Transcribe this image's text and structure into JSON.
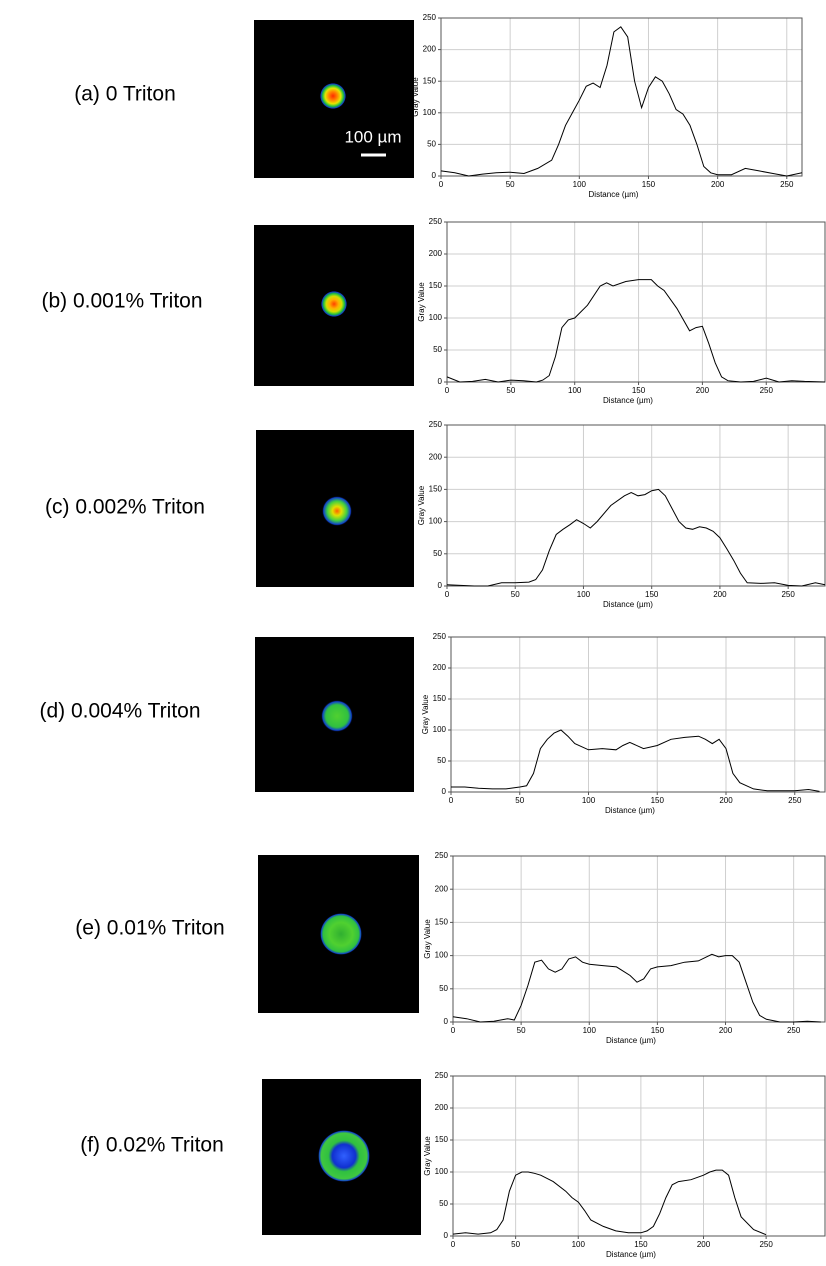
{
  "chart_data": [
    {
      "type": "line",
      "title": "(a) 0 Triton",
      "xlabel": "Distance (µm)",
      "ylabel": "Gray Value",
      "color": "#000000",
      "grid": true,
      "xlim": [
        0,
        261
      ],
      "ylim": [
        0,
        250
      ],
      "xticks": [
        0,
        50,
        100,
        150,
        200,
        250
      ],
      "yticks": [
        0,
        50,
        100,
        150,
        200,
        250
      ],
      "x": [
        0,
        10,
        20,
        30,
        40,
        50,
        60,
        70,
        80,
        85,
        90,
        95,
        100,
        105,
        110,
        115,
        120,
        125,
        130,
        135,
        140,
        145,
        150,
        155,
        160,
        165,
        170,
        175,
        180,
        185,
        190,
        195,
        200,
        210,
        220,
        230,
        240,
        250,
        261
      ],
      "values": [
        8,
        5,
        0,
        3,
        5,
        6,
        4,
        12,
        25,
        50,
        80,
        100,
        120,
        142,
        147,
        140,
        175,
        228,
        236,
        220,
        150,
        108,
        140,
        157,
        150,
        130,
        105,
        98,
        80,
        50,
        15,
        5,
        2,
        2,
        12,
        8,
        4,
        0,
        5
      ]
    },
    {
      "type": "line",
      "title": "(b) 0.001% Triton",
      "xlabel": "Distance (µm)",
      "ylabel": "Gray Value",
      "color": "#000000",
      "grid": true,
      "xlim": [
        0,
        296
      ],
      "ylim": [
        0,
        250
      ],
      "xticks": [
        0,
        50,
        100,
        150,
        200,
        250
      ],
      "yticks": [
        0,
        50,
        100,
        150,
        200,
        250
      ],
      "x": [
        0,
        10,
        20,
        30,
        40,
        50,
        60,
        70,
        75,
        80,
        85,
        90,
        95,
        100,
        110,
        120,
        125,
        130,
        140,
        150,
        160,
        165,
        170,
        180,
        190,
        195,
        200,
        205,
        210,
        215,
        220,
        230,
        240,
        250,
        260,
        270,
        280,
        296
      ],
      "values": [
        8,
        0,
        1,
        4,
        0,
        3,
        2,
        0,
        3,
        10,
        40,
        85,
        97,
        100,
        120,
        150,
        155,
        150,
        157,
        160,
        160,
        150,
        143,
        115,
        80,
        85,
        87,
        60,
        30,
        8,
        2,
        0,
        1,
        6,
        0,
        2,
        1,
        0
      ]
    },
    {
      "type": "line",
      "title": "(c) 0.002% Triton",
      "xlabel": "Distance (µm)",
      "ylabel": "Gray Value",
      "color": "#000000",
      "grid": true,
      "xlim": [
        0,
        277
      ],
      "ylim": [
        0,
        250
      ],
      "xticks": [
        0,
        50,
        100,
        150,
        200,
        250
      ],
      "yticks": [
        0,
        50,
        100,
        150,
        200,
        250
      ],
      "x": [
        0,
        10,
        20,
        30,
        40,
        50,
        60,
        65,
        70,
        75,
        80,
        85,
        90,
        95,
        100,
        105,
        110,
        120,
        130,
        135,
        140,
        145,
        150,
        155,
        160,
        170,
        175,
        180,
        185,
        190,
        195,
        200,
        205,
        210,
        215,
        220,
        230,
        240,
        250,
        260,
        270,
        277
      ],
      "values": [
        2,
        1,
        0,
        0,
        5,
        5,
        6,
        10,
        25,
        55,
        80,
        88,
        95,
        103,
        97,
        90,
        100,
        125,
        140,
        145,
        140,
        142,
        148,
        150,
        140,
        100,
        90,
        88,
        92,
        90,
        85,
        75,
        58,
        40,
        20,
        5,
        4,
        5,
        1,
        0,
        5,
        2
      ]
    },
    {
      "type": "line",
      "title": "(d) 0.004% Triton",
      "xlabel": "Distance (µm)",
      "ylabel": "Gray Value",
      "color": "#000000",
      "grid": true,
      "xlim": [
        0,
        272
      ],
      "ylim": [
        0,
        250
      ],
      "xticks": [
        0,
        50,
        100,
        150,
        200,
        250
      ],
      "yticks": [
        0,
        50,
        100,
        150,
        200,
        250
      ],
      "x": [
        0,
        10,
        20,
        30,
        40,
        50,
        55,
        60,
        65,
        70,
        75,
        80,
        85,
        90,
        100,
        110,
        120,
        125,
        130,
        140,
        150,
        160,
        170,
        180,
        185,
        190,
        195,
        200,
        205,
        210,
        220,
        230,
        240,
        250,
        260,
        268
      ],
      "values": [
        8,
        8,
        6,
        5,
        5,
        8,
        10,
        30,
        70,
        85,
        95,
        100,
        90,
        78,
        68,
        70,
        68,
        75,
        80,
        70,
        75,
        85,
        88,
        90,
        85,
        78,
        85,
        70,
        30,
        15,
        5,
        2,
        2,
        2,
        4,
        1
      ]
    },
    {
      "type": "line",
      "title": "(e) 0.01% Triton",
      "xlabel": "Distance (µm)",
      "ylabel": "Gray Value",
      "color": "#000000",
      "grid": true,
      "xlim": [
        0,
        273
      ],
      "ylim": [
        0,
        250
      ],
      "xticks": [
        0,
        50,
        100,
        150,
        200,
        250
      ],
      "yticks": [
        0,
        50,
        100,
        150,
        200,
        250
      ],
      "x": [
        0,
        10,
        20,
        30,
        40,
        45,
        50,
        55,
        60,
        65,
        70,
        75,
        80,
        85,
        90,
        95,
        100,
        110,
        120,
        130,
        135,
        140,
        145,
        150,
        160,
        170,
        180,
        190,
        195,
        200,
        205,
        210,
        215,
        220,
        225,
        230,
        240,
        250,
        260,
        270
      ],
      "values": [
        8,
        5,
        0,
        1,
        5,
        3,
        25,
        55,
        90,
        93,
        80,
        75,
        80,
        95,
        98,
        90,
        87,
        85,
        83,
        70,
        60,
        65,
        80,
        83,
        85,
        90,
        92,
        102,
        98,
        100,
        100,
        90,
        60,
        30,
        10,
        4,
        0,
        0,
        1,
        0
      ]
    },
    {
      "type": "line",
      "title": "(f) 0.02% Triton",
      "xlabel": "Distance (µm)",
      "ylabel": "Gray Value",
      "color": "#000000",
      "grid": true,
      "xlim": [
        0,
        297
      ],
      "ylim": [
        0,
        250
      ],
      "xticks": [
        0,
        50,
        100,
        150,
        200,
        250
      ],
      "yticks": [
        0,
        50,
        100,
        150,
        200,
        250
      ],
      "x": [
        0,
        10,
        20,
        30,
        35,
        40,
        45,
        50,
        55,
        60,
        65,
        70,
        80,
        90,
        95,
        100,
        105,
        110,
        120,
        130,
        140,
        150,
        155,
        160,
        165,
        170,
        175,
        180,
        190,
        200,
        205,
        210,
        215,
        220,
        225,
        230,
        240,
        250
      ],
      "values": [
        3,
        5,
        3,
        5,
        10,
        25,
        70,
        95,
        100,
        100,
        98,
        95,
        85,
        70,
        60,
        53,
        40,
        25,
        15,
        8,
        5,
        5,
        8,
        15,
        35,
        60,
        80,
        85,
        88,
        95,
        100,
        103,
        103,
        95,
        60,
        30,
        10,
        2
      ]
    }
  ],
  "scale_bar_label": "100 µm"
}
